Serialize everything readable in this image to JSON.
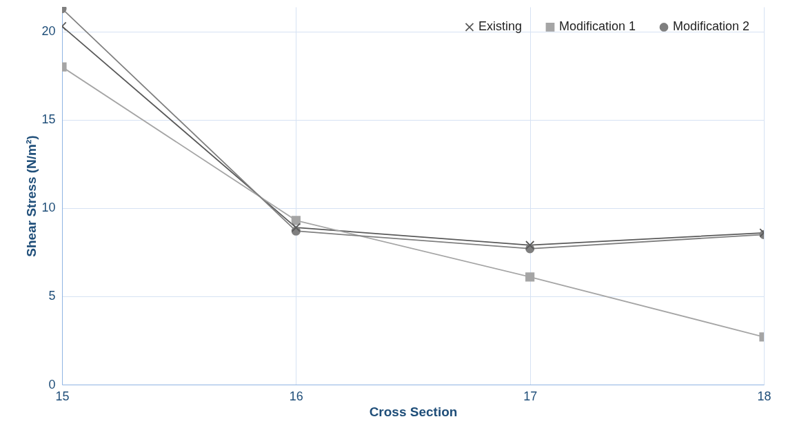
{
  "chart_data": {
    "type": "line",
    "xlabel": "Cross Section",
    "ylabel": "Shear Stress (N/m²)",
    "x": [
      15,
      16,
      17,
      18
    ],
    "xlim": [
      15,
      18
    ],
    "xticks": [
      15,
      16,
      17,
      18
    ],
    "ylim": [
      0,
      21.4
    ],
    "yticks": [
      0,
      5,
      10,
      15,
      20
    ],
    "grid": true,
    "legend": "top right",
    "line_style": "solid",
    "series": [
      {
        "name": "Existing",
        "color": "#595959",
        "marker": "cross",
        "values": [
          20.3,
          8.9,
          7.9,
          8.6
        ]
      },
      {
        "name": "Modification 1",
        "color": "#a5a5a5",
        "marker": "square",
        "values": [
          18,
          9.3,
          6.1,
          2.7
        ]
      },
      {
        "name": "Modification 2",
        "color": "#7f7f7f",
        "marker": "circle",
        "values": [
          21.3,
          8.7,
          7.7,
          8.5
        ]
      }
    ]
  }
}
